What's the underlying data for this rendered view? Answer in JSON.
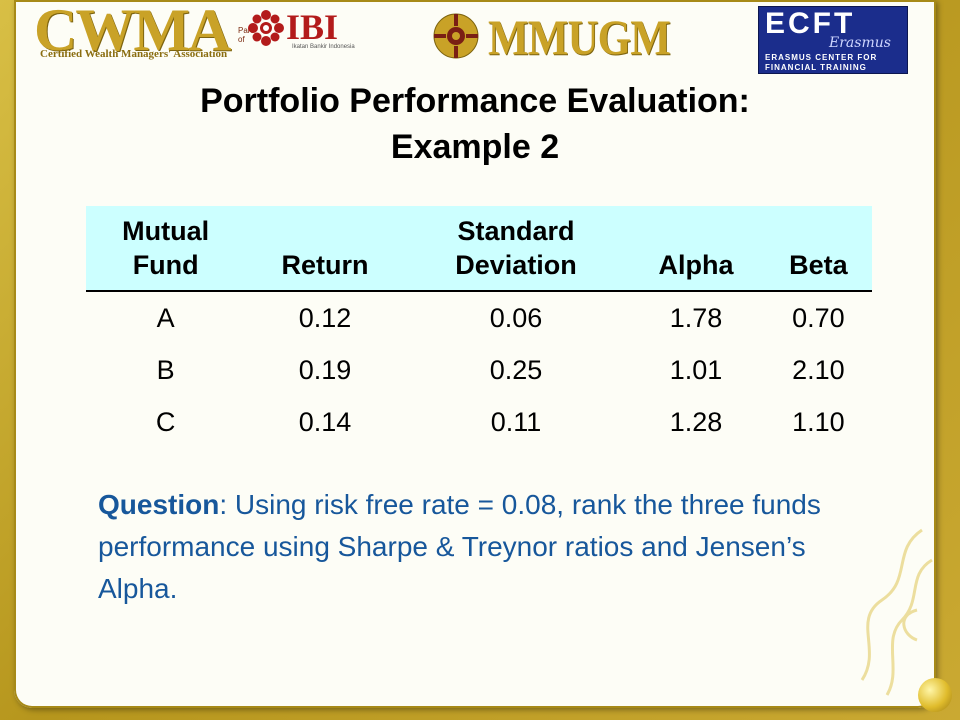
{
  "logos": {
    "cwma": {
      "text": "CWMA",
      "subtitle": "Certified Wealth Managers' Association",
      "part_of": "Part of"
    },
    "ibi": {
      "text": "IBI",
      "subtitle": "Ikatan Bankir Indonesia"
    },
    "mmugm": {
      "text": "MMUGM"
    },
    "ecft": {
      "text": "ECFT",
      "script": "Erasmus",
      "line1": "ERASMUS CENTER FOR",
      "line2": "FINANCIAL TRAINING"
    }
  },
  "title": {
    "line1": "Portfolio Performance Evaluation:",
    "line2": "Example 2"
  },
  "table": {
    "headers": [
      {
        "line1": "Mutual",
        "line2": "Fund"
      },
      {
        "line1": "",
        "line2": "Return"
      },
      {
        "line1": "Standard",
        "line2": "Deviation"
      },
      {
        "line1": "",
        "line2": "Alpha"
      },
      {
        "line1": "",
        "line2": "Beta"
      }
    ],
    "rows": [
      [
        "A",
        "0.12",
        "0.06",
        "1.78",
        "0.70"
      ],
      [
        "B",
        "0.19",
        "0.25",
        "1.01",
        "2.10"
      ],
      [
        "C",
        "0.14",
        "0.11",
        "1.28",
        "1.10"
      ]
    ]
  },
  "question": {
    "label": "Question",
    "text": ": Using risk free rate = 0.08, rank the three funds performance using Sharpe & Treynor ratios and Jensen’s Alpha."
  },
  "colors": {
    "header_bg": "#ccffff",
    "question_text": "#17579b",
    "frame": "#c9ad2a",
    "title_text": "#000000"
  }
}
